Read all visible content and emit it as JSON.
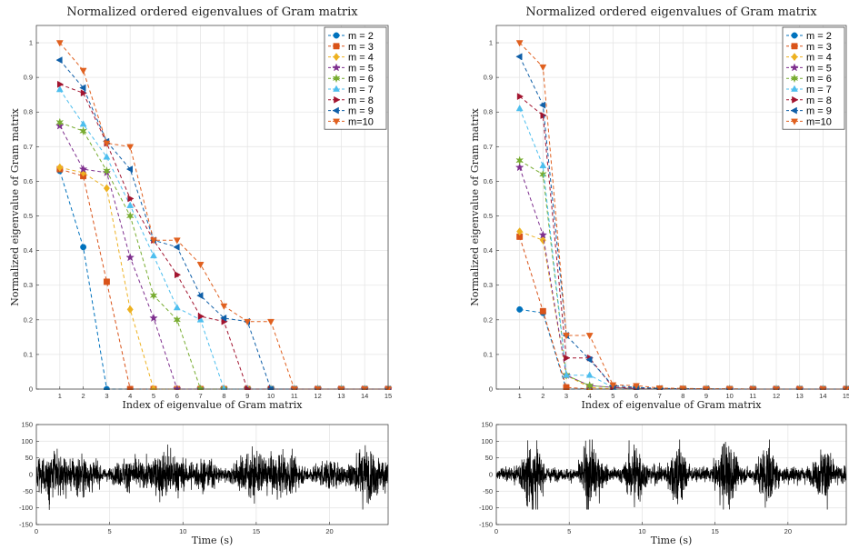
{
  "colors": [
    "#0072BD",
    "#D95319",
    "#EDB120",
    "#7E2F8E",
    "#77AC30",
    "#4DBEEE",
    "#A2142F",
    "#0F5FA8",
    "#E0601F"
  ],
  "markers": [
    "circle",
    "square",
    "diamond",
    "star",
    "hexagram",
    "triangle-up",
    "triangle-right",
    "triangle-left",
    "triangle-down"
  ],
  "chart_data": [
    {
      "type": "line",
      "title": "Normalized ordered eigenvalues of Gram matrix",
      "xlabel": "Index of eigenvalue of Gram matrix",
      "ylabel": "Normalized eigenvalue of Gram matrix",
      "xlim": [
        0,
        15
      ],
      "ylim": [
        0,
        1.05
      ],
      "xticks": [
        "1",
        "2",
        "3",
        "4",
        "5",
        "6",
        "7",
        "8",
        "9",
        "10",
        "11",
        "12",
        "13",
        "14",
        "15"
      ],
      "yticks": [
        "0",
        "0.1",
        "0.2",
        "0.3",
        "0.4",
        "0.5",
        "0.6",
        "0.7",
        "0.8",
        "0.9",
        "1"
      ],
      "grid": true,
      "legend_position": "top-right",
      "x": [
        1,
        2,
        3,
        4,
        5,
        6,
        7,
        8,
        9,
        10,
        11,
        12,
        13,
        14,
        15
      ],
      "series": [
        {
          "name": "m = 2",
          "values": [
            0.63,
            0.41,
            0,
            0,
            0,
            0,
            0,
            0,
            0,
            0,
            0,
            0,
            0,
            0,
            0
          ]
        },
        {
          "name": "m = 3",
          "values": [
            0.635,
            0.615,
            0.31,
            0,
            0,
            0,
            0,
            0,
            0,
            0,
            0,
            0,
            0,
            0,
            0
          ]
        },
        {
          "name": "m = 4",
          "values": [
            0.64,
            0.625,
            0.58,
            0.23,
            0,
            0,
            0,
            0,
            0,
            0,
            0,
            0,
            0,
            0,
            0
          ]
        },
        {
          "name": "m = 5",
          "values": [
            0.76,
            0.635,
            0.625,
            0.38,
            0.205,
            0,
            0,
            0,
            0,
            0,
            0,
            0,
            0,
            0,
            0
          ]
        },
        {
          "name": "m = 6",
          "values": [
            0.77,
            0.745,
            0.63,
            0.5,
            0.27,
            0.2,
            0,
            0,
            0,
            0,
            0,
            0,
            0,
            0,
            0
          ]
        },
        {
          "name": "m = 7",
          "values": [
            0.865,
            0.765,
            0.67,
            0.53,
            0.385,
            0.235,
            0.2,
            0,
            0,
            0,
            0,
            0,
            0,
            0,
            0
          ]
        },
        {
          "name": "m = 8",
          "values": [
            0.88,
            0.855,
            0.71,
            0.55,
            0.43,
            0.33,
            0.21,
            0.195,
            0,
            0,
            0,
            0,
            0,
            0,
            0
          ]
        },
        {
          "name": "m = 9",
          "values": [
            0.95,
            0.87,
            0.715,
            0.635,
            0.43,
            0.41,
            0.27,
            0.205,
            0.195,
            0,
            0,
            0,
            0,
            0,
            0
          ]
        },
        {
          "name": "m=10",
          "values": [
            1.0,
            0.92,
            0.71,
            0.7,
            0.43,
            0.43,
            0.36,
            0.24,
            0.195,
            0.195,
            0,
            0,
            0,
            0,
            0
          ]
        }
      ]
    },
    {
      "type": "line",
      "title": "Normalized ordered eigenvalues of Gram matrix",
      "xlabel": "Index of eigenvalue of Gram matrix",
      "ylabel": "Normalized eigenvalue of Gram matrix",
      "xlim": [
        0,
        15
      ],
      "ylim": [
        0,
        1.05
      ],
      "xticks": [
        "1",
        "2",
        "3",
        "4",
        "5",
        "6",
        "7",
        "8",
        "9",
        "10",
        "11",
        "12",
        "13",
        "14",
        "15"
      ],
      "yticks": [
        "0",
        "0.1",
        "0.2",
        "0.3",
        "0.4",
        "0.5",
        "0.6",
        "0.7",
        "0.8",
        "0.9",
        "1"
      ],
      "grid": true,
      "legend_position": "top-right",
      "x": [
        1,
        2,
        3,
        4,
        5,
        6,
        7,
        8,
        9,
        10,
        11,
        12,
        13,
        14,
        15
      ],
      "series": [
        {
          "name": "m = 2",
          "values": [
            0.23,
            0.22,
            0,
            0,
            0,
            0,
            0,
            0,
            0,
            0,
            0,
            0,
            0,
            0,
            0
          ]
        },
        {
          "name": "m = 3",
          "values": [
            0.44,
            0.225,
            0.005,
            0,
            0,
            0,
            0,
            0,
            0,
            0,
            0,
            0,
            0,
            0,
            0
          ]
        },
        {
          "name": "m = 4",
          "values": [
            0.455,
            0.43,
            0.04,
            0.005,
            0,
            0,
            0,
            0,
            0,
            0,
            0,
            0,
            0,
            0,
            0
          ]
        },
        {
          "name": "m = 5",
          "values": [
            0.64,
            0.445,
            0.04,
            0.01,
            0.005,
            0,
            0,
            0,
            0,
            0,
            0,
            0,
            0,
            0,
            0
          ]
        },
        {
          "name": "m = 6",
          "values": [
            0.66,
            0.62,
            0.04,
            0.01,
            0.005,
            0.002,
            0,
            0,
            0,
            0,
            0,
            0,
            0,
            0,
            0
          ]
        },
        {
          "name": "m = 7",
          "values": [
            0.81,
            0.645,
            0.04,
            0.04,
            0.005,
            0.002,
            0.001,
            0,
            0,
            0,
            0,
            0,
            0,
            0,
            0
          ]
        },
        {
          "name": "m = 8",
          "values": [
            0.845,
            0.79,
            0.09,
            0.09,
            0.005,
            0.003,
            0.001,
            0.001,
            0,
            0,
            0,
            0,
            0,
            0,
            0
          ]
        },
        {
          "name": "m = 9",
          "values": [
            0.96,
            0.82,
            0.155,
            0.085,
            0.01,
            0.005,
            0.002,
            0.001,
            0.001,
            0,
            0,
            0,
            0,
            0,
            0
          ]
        },
        {
          "name": "m=10",
          "values": [
            1.0,
            0.93,
            0.155,
            0.155,
            0.012,
            0.01,
            0.003,
            0.002,
            0.001,
            0.001,
            0,
            0,
            0,
            0,
            0
          ]
        }
      ]
    },
    {
      "type": "line",
      "xlabel": "Time (s)",
      "xlim": [
        0,
        24
      ],
      "ylim": [
        -150,
        150
      ],
      "xticks": [
        "0",
        "5",
        "10",
        "15",
        "20"
      ],
      "yticks": [
        "-150",
        "-100",
        "-50",
        "0",
        "50",
        "100",
        "150"
      ],
      "grid": true,
      "signal": {
        "duration_s": 24,
        "style": "noise-like",
        "peak_amplitude": 145
      }
    },
    {
      "type": "line",
      "xlabel": "Time (s)",
      "xlim": [
        0,
        24
      ],
      "ylim": [
        -150,
        150
      ],
      "xticks": [
        "0",
        "5",
        "10",
        "15",
        "20"
      ],
      "yticks": [
        "-150",
        "-100",
        "-50",
        "0",
        "50",
        "100",
        "150"
      ],
      "grid": true,
      "signal": {
        "duration_s": 24,
        "style": "bursts",
        "peak_amplitude": 105,
        "bursts_at_s": [
          2.5,
          6.5,
          9.5,
          12.5,
          15.8,
          18.5,
          22.5
        ]
      }
    }
  ]
}
